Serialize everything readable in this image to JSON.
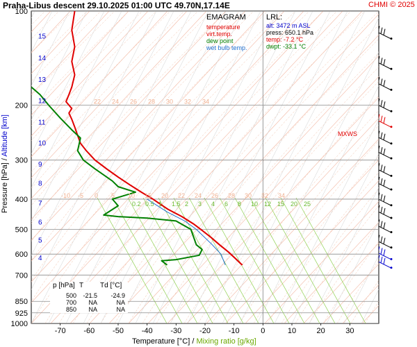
{
  "header": {
    "title": "Praha-Libus   descent   29.10.2025 01:00 UTC  49.70N,17.14E",
    "credit": "CHMI © 2025"
  },
  "legend": {
    "title": "EMAGRAM",
    "items": [
      {
        "label": "temperature",
        "color": "#e00000"
      },
      {
        "label": "virt.temp.",
        "color": "#e00000"
      },
      {
        "label": "dew point",
        "color": "#008000"
      },
      {
        "label": "wet bulb temp.",
        "color": "#1f6fd0"
      }
    ]
  },
  "lrl": {
    "title": "LRL:",
    "lines": [
      {
        "text": "alt: 3472 m ASL",
        "color": "#0000cc"
      },
      {
        "text": "press: 650.1 hPa",
        "color": "#000000"
      },
      {
        "text": "temp: -7.2 °C",
        "color": "#e00000"
      },
      {
        "text": "dwpt: -33.1 °C",
        "color": "#008000"
      }
    ]
  },
  "levels_table": {
    "headers": [
      "p [hPa]",
      "T",
      "Td [°C]"
    ],
    "rows": [
      [
        "500",
        "-21.5",
        "-24.9"
      ],
      [
        "700",
        "NA",
        "NA"
      ],
      [
        "850",
        "NA",
        "NA"
      ]
    ]
  },
  "mxws_label": "MXWS",
  "chart_data": {
    "type": "line",
    "xlabel": "Temperature [°C]",
    "xlabel_sep": "/",
    "xlabel2": "Mixing ratio [g/kg]",
    "ylabel_left": "Pressure [hPa]",
    "ylabel_sep": "/",
    "ylabel_right": "Altitude [km]",
    "y_scale": "log",
    "xlim": [
      -80,
      40
    ],
    "ylim": [
      1000,
      100
    ],
    "x_ticks": [
      -70,
      -60,
      -50,
      -40,
      -30,
      -20,
      -10,
      0,
      10,
      20,
      30
    ],
    "pressure_ticks": [
      100,
      200,
      300,
      400,
      500,
      600,
      700,
      850,
      925,
      1000
    ],
    "altitude_ticks_km": [
      {
        "km": "4",
        "p": 615
      },
      {
        "km": "5",
        "p": 540
      },
      {
        "km": "6",
        "p": 472
      },
      {
        "km": "7",
        "p": 410
      },
      {
        "km": "8",
        "p": 355
      },
      {
        "km": "9",
        "p": 308
      },
      {
        "km": "10",
        "p": 264
      },
      {
        "km": "11",
        "p": 226
      },
      {
        "km": "12",
        "p": 193
      },
      {
        "km": "13",
        "p": 165
      },
      {
        "km": "14",
        "p": 141
      },
      {
        "km": "15",
        "p": 120
      }
    ],
    "mixing_ratio_labels": {
      "upper": {
        "p": 200,
        "labels": [
          "22",
          "24",
          "26",
          "28",
          "30",
          "32",
          "34"
        ]
      },
      "middle": {
        "p": 400,
        "labels": [
          "-10",
          "-5",
          "0",
          "5",
          "10",
          "15",
          "20",
          "22",
          "24",
          "26",
          "28",
          "30",
          "32",
          "34"
        ]
      },
      "green": {
        "p": 425,
        "labels": [
          "0.2",
          "0.5",
          "1",
          "1.5",
          "2",
          "3",
          "4",
          "6",
          "8",
          "10",
          "12",
          "15",
          "20",
          "25"
        ]
      }
    },
    "series": [
      {
        "name": "temperature",
        "color": "#e00000",
        "points": [
          [
            -7.2,
            650
          ],
          [
            -9.5,
            620
          ],
          [
            -12,
            590
          ],
          [
            -15,
            560
          ],
          [
            -18,
            530
          ],
          [
            -21.5,
            500
          ],
          [
            -24,
            480
          ],
          [
            -28,
            455
          ],
          [
            -33,
            430
          ],
          [
            -38,
            400
          ],
          [
            -42,
            380
          ],
          [
            -46,
            360
          ],
          [
            -50,
            340
          ],
          [
            -54,
            320
          ],
          [
            -58,
            300
          ],
          [
            -61,
            280
          ],
          [
            -63,
            265
          ],
          [
            -64,
            250
          ],
          [
            -65,
            235
          ],
          [
            -66,
            222
          ],
          [
            -67,
            212
          ],
          [
            -66,
            205
          ],
          [
            -68,
            195
          ],
          [
            -67,
            185
          ],
          [
            -66,
            175
          ],
          [
            -65,
            160
          ],
          [
            -66,
            145
          ],
          [
            -65,
            130
          ],
          [
            -66,
            115
          ],
          [
            -65,
            100
          ]
        ]
      },
      {
        "name": "virt.temp.",
        "color": "#e00000",
        "points": [
          [
            -7.0,
            650
          ],
          [
            -9.3,
            620
          ],
          [
            -11.8,
            590
          ],
          [
            -14.8,
            560
          ],
          [
            -17.8,
            530
          ],
          [
            -21.3,
            500
          ],
          [
            -23.8,
            480
          ],
          [
            -27.8,
            455
          ],
          [
            -32.8,
            430
          ],
          [
            -37.8,
            400
          ],
          [
            -41.8,
            380
          ],
          [
            -45.8,
            360
          ],
          [
            -49.8,
            340
          ],
          [
            -53.8,
            320
          ],
          [
            -57.8,
            300
          ]
        ]
      },
      {
        "name": "dew point",
        "color": "#008000",
        "points": [
          [
            -33.1,
            650
          ],
          [
            -35,
            630
          ],
          [
            -30,
            625
          ],
          [
            -22,
            605
          ],
          [
            -21,
            580
          ],
          [
            -23,
            560
          ],
          [
            -24.9,
            500
          ],
          [
            -30,
            470
          ],
          [
            -40,
            460
          ],
          [
            -50,
            455
          ],
          [
            -55,
            450
          ],
          [
            -50,
            420
          ],
          [
            -52,
            400
          ],
          [
            -44,
            380
          ],
          [
            -50,
            365
          ],
          [
            -52,
            350
          ],
          [
            -58,
            320
          ],
          [
            -62,
            300
          ],
          [
            -64,
            280
          ],
          [
            -63,
            255
          ],
          [
            -66,
            240
          ],
          [
            -70,
            220
          ],
          [
            -74,
            200
          ],
          [
            -77,
            185
          ],
          [
            -80,
            175
          ]
        ]
      },
      {
        "name": "wet bulb temp.",
        "color": "#1f6fd0",
        "points": [
          [
            -13,
            650
          ],
          [
            -14.5,
            600
          ],
          [
            -17.5,
            560
          ],
          [
            -23,
            500
          ],
          [
            -27,
            470
          ],
          [
            -33,
            440
          ],
          [
            -40,
            400
          ]
        ]
      }
    ],
    "wind_barbs_p": [
      120,
      150,
      175,
      205,
      230,
      260,
      290,
      330,
      365,
      410,
      450,
      500,
      560,
      610,
      650
    ]
  }
}
